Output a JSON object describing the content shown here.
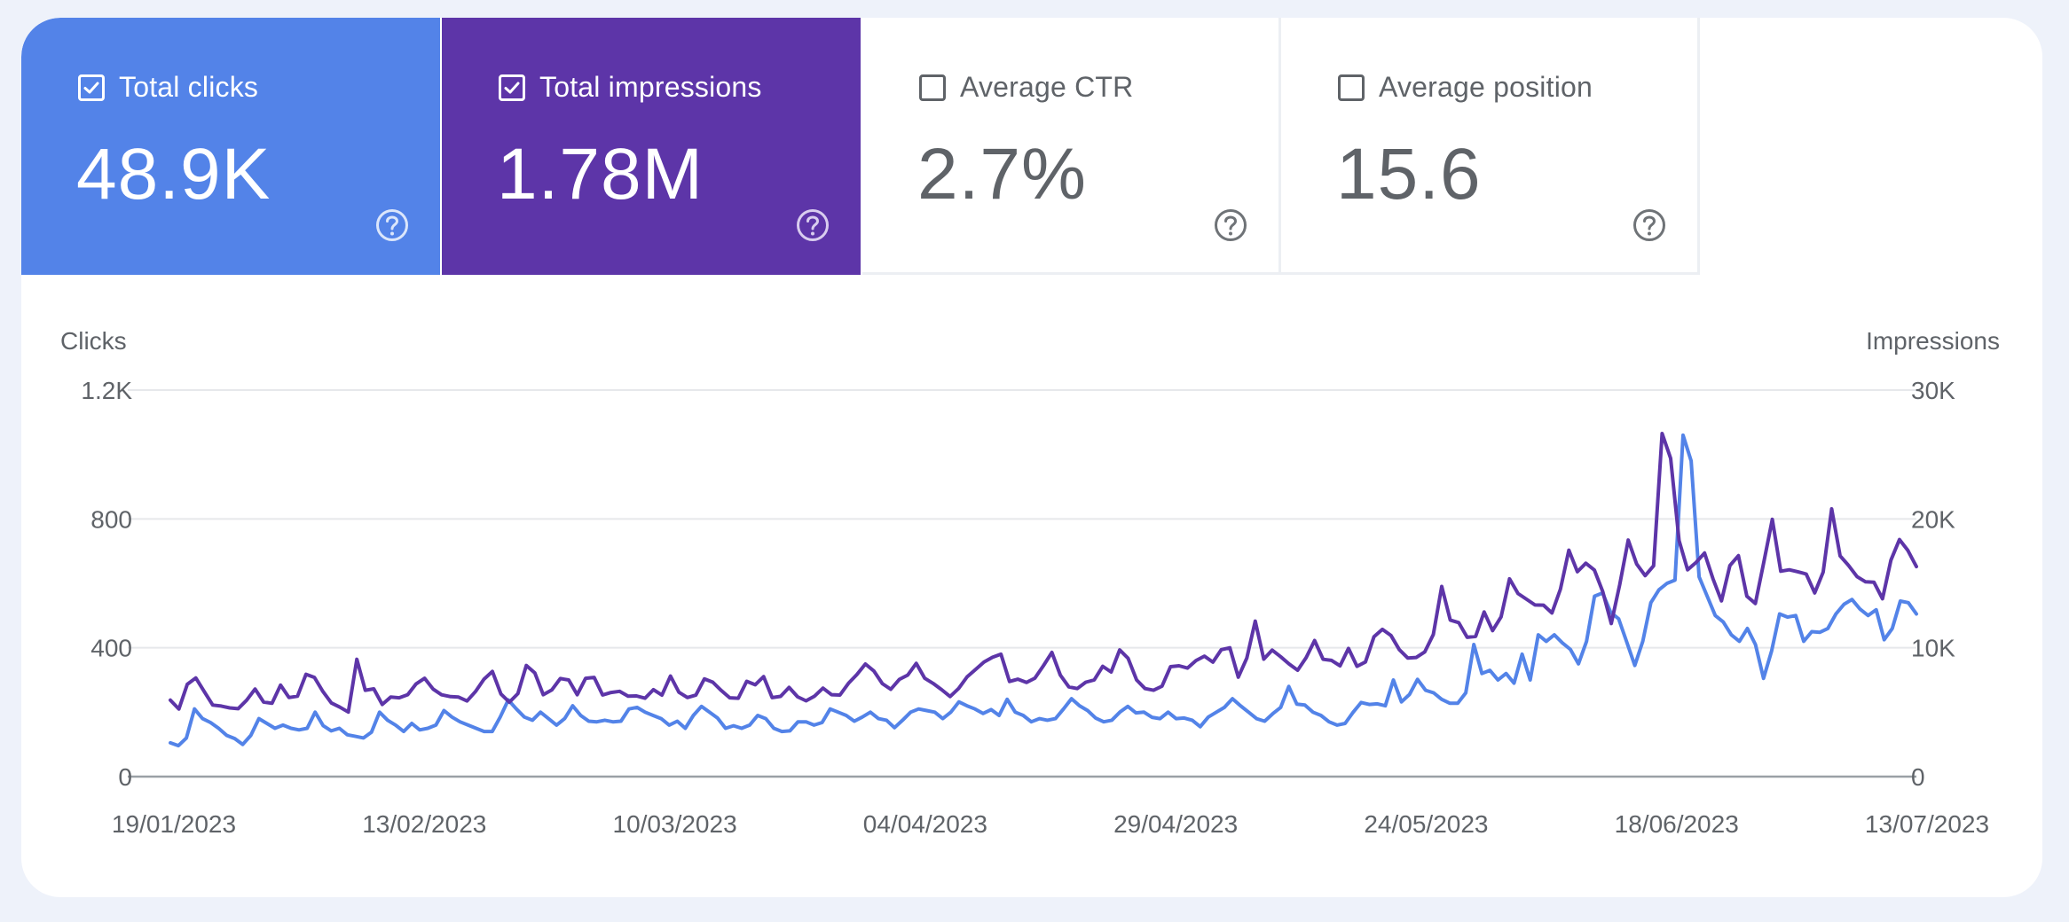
{
  "cards": [
    {
      "label": "Total clicks",
      "value": "48.9K",
      "checked": true,
      "color": "#5383e8"
    },
    {
      "label": "Total impressions",
      "value": "1.78M",
      "checked": true,
      "color": "#5d35a8"
    },
    {
      "label": "Average CTR",
      "value": "2.7%",
      "checked": false
    },
    {
      "label": "Average position",
      "value": "15.6",
      "checked": false
    }
  ],
  "chart_data": {
    "type": "line",
    "left_axis": {
      "label": "Clicks",
      "ticks": [
        "1.2K",
        "800",
        "400",
        "0"
      ],
      "range": [
        0,
        1200
      ]
    },
    "right_axis": {
      "label": "Impressions",
      "ticks": [
        "30K",
        "20K",
        "10K",
        "0"
      ],
      "range": [
        0,
        30000
      ]
    },
    "x_ticks": [
      "19/01/2023",
      "13/02/2023",
      "10/03/2023",
      "04/04/2023",
      "29/04/2023",
      "24/05/2023",
      "18/06/2023",
      "13/07/2023"
    ],
    "x_range": [
      "19/01/2023",
      "17/07/2023"
    ],
    "grid": true,
    "series": [
      {
        "name": "Clicks",
        "axis": "left",
        "color": "#5383e8",
        "values": [
          105,
          96,
          120,
          210,
          180,
          168,
          150,
          128,
          118,
          100,
          128,
          180,
          165,
          150,
          160,
          150,
          145,
          150,
          200,
          158,
          142,
          150,
          130,
          125,
          120,
          138,
          200,
          175,
          160,
          140,
          165,
          145,
          150,
          160,
          205,
          185,
          170,
          160,
          150,
          140,
          140,
          185,
          238,
          210,
          185,
          175,
          200,
          180,
          160,
          180,
          220,
          190,
          172,
          170,
          175,
          170,
          172,
          210,
          215,
          200,
          190,
          180,
          160,
          172,
          150,
          190,
          218,
          200,
          182,
          150,
          158,
          150,
          160,
          190,
          180,
          150,
          140,
          142,
          170,
          170,
          160,
          168,
          210,
          200,
          190,
          172,
          185,
          200,
          180,
          175,
          152,
          175,
          200,
          210,
          205,
          200,
          180,
          200,
          232,
          220,
          210,
          196,
          208,
          190,
          240,
          200,
          190,
          170,
          180,
          175,
          180,
          210,
          242,
          220,
          205,
          182,
          170,
          175,
          200,
          218,
          198,
          200,
          184,
          180,
          200,
          180,
          182,
          175,
          155,
          185,
          200,
          215,
          242,
          220,
          200,
          180,
          172,
          195,
          215,
          280,
          225,
          222,
          200,
          190,
          170,
          160,
          165,
          200,
          230,
          224,
          226,
          220,
          300,
          232,
          255,
          302,
          268,
          260,
          240,
          228,
          228,
          260,
          410,
          320,
          330,
          300,
          320,
          290,
          380,
          300,
          440,
          420,
          440,
          415,
          395,
          350,
          420,
          560,
          570,
          510,
          490,
          418,
          345,
          420,
          540,
          580,
          600,
          610,
          1060,
          980,
          620,
          560,
          500,
          480,
          440,
          420,
          460,
          410,
          305,
          390,
          505,
          495,
          500,
          420,
          450,
          448,
          460,
          505,
          535,
          550,
          520,
          500,
          518,
          425,
          460,
          545,
          540,
          505
        ]
      },
      {
        "name": "Impressions",
        "axis": "right",
        "color": "#5d35a8",
        "values": [
          5940,
          5240,
          7160,
          7660,
          6600,
          5550,
          5480,
          5330,
          5270,
          5930,
          6800,
          5790,
          5690,
          7100,
          6140,
          6240,
          7940,
          7700,
          6600,
          5720,
          5390,
          5010,
          9100,
          6700,
          6810,
          5600,
          6170,
          6120,
          6360,
          7200,
          7630,
          6790,
          6350,
          6210,
          6170,
          5870,
          6600,
          7560,
          8160,
          6410,
          5770,
          6440,
          8620,
          8050,
          6360,
          6720,
          7610,
          7500,
          6360,
          7630,
          7700,
          6340,
          6530,
          6620,
          6250,
          6260,
          6080,
          6750,
          6320,
          7800,
          6550,
          6140,
          6320,
          7580,
          7330,
          6680,
          6120,
          6080,
          7400,
          7130,
          7760,
          6130,
          6230,
          6920,
          6190,
          5880,
          6250,
          6870,
          6360,
          6330,
          7240,
          7920,
          8740,
          8200,
          7220,
          6780,
          7540,
          7880,
          8790,
          7630,
          7230,
          6740,
          6210,
          6840,
          7740,
          8320,
          8890,
          9260,
          9500,
          7380,
          7560,
          7310,
          7640,
          8600,
          9640,
          7880,
          6960,
          6830,
          7330,
          7500,
          8560,
          8120,
          9830,
          9180,
          7500,
          6830,
          6700,
          7020,
          8530,
          8600,
          8420,
          9010,
          9350,
          8880,
          9850,
          10000,
          7720,
          9200,
          12070,
          9120,
          9820,
          9300,
          8740,
          8260,
          9240,
          10560,
          9100,
          9020,
          8600,
          9950,
          8560,
          8900,
          10850,
          11430,
          10960,
          9850,
          9200,
          9250,
          9680,
          11020,
          14760,
          12150,
          11950,
          10810,
          10880,
          12780,
          11330,
          12400,
          15350,
          14210,
          13770,
          13320,
          13310,
          12700,
          14550,
          17570,
          15900,
          16560,
          16040,
          14350,
          11880,
          14900,
          18360,
          16500,
          15600,
          16360,
          26630,
          24700,
          18320,
          16050,
          16620,
          17350,
          15360,
          13640,
          16380,
          17150,
          14000,
          13440,
          16640,
          19970,
          15940,
          16050,
          15900,
          15720,
          14260,
          15870,
          20780,
          17130,
          16380,
          15520,
          15120,
          15080,
          13800,
          16800,
          18400,
          17550,
          16300
        ]
      }
    ]
  }
}
